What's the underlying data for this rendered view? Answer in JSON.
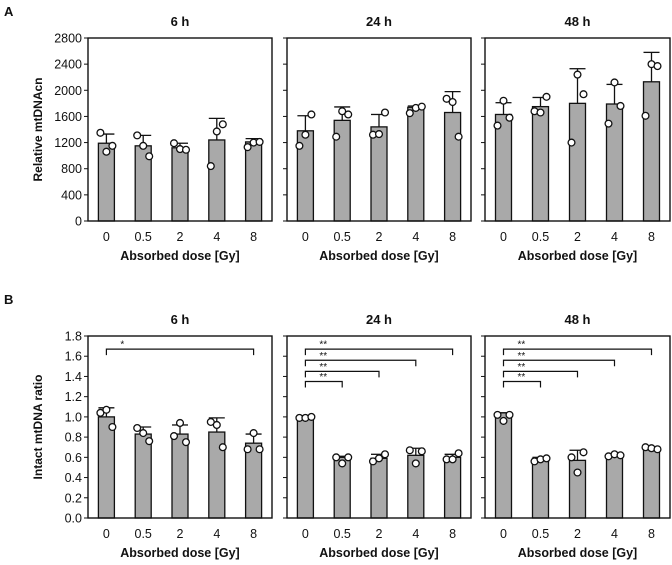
{
  "figure": {
    "panel_labels": [
      "A",
      "B"
    ]
  },
  "colors": {
    "bar_fill": "#a9a9a9",
    "bar_stroke": "#111111",
    "point_fill": "#ffffff"
  },
  "chart_data": [
    {
      "type": "bar",
      "row": "A",
      "title": "6 h",
      "xlabel": "Absorbed dose [Gy]",
      "ylabel": "Relative mtDNAcn",
      "ylim": [
        0,
        2800
      ],
      "yticks": [
        0,
        400,
        800,
        1200,
        1600,
        2000,
        2400,
        2800
      ],
      "categories": [
        "0",
        "0.5",
        "2",
        "4",
        "8"
      ],
      "values": [
        1190,
        1150,
        1120,
        1240,
        1210
      ],
      "error_upper": [
        1330,
        1310,
        1190,
        1570,
        1260
      ],
      "points": [
        [
          1350,
          1060,
          1150
        ],
        [
          1310,
          1150,
          990
        ],
        [
          1190,
          1100,
          1090
        ],
        [
          840,
          1370,
          1480
        ],
        [
          1130,
          1200,
          1210
        ]
      ],
      "annotations": []
    },
    {
      "type": "bar",
      "row": "A",
      "title": "24 h",
      "xlabel": "Absorbed dose [Gy]",
      "ylabel": "",
      "ylim": [
        0,
        2800
      ],
      "yticks": [
        0,
        400,
        800,
        1200,
        1600,
        2000,
        2400,
        2800
      ],
      "categories": [
        "0",
        "0.5",
        "2",
        "4",
        "8"
      ],
      "values": [
        1380,
        1540,
        1440,
        1740,
        1660
      ],
      "error_upper": [
        1610,
        1745,
        1630,
        1760,
        1980
      ],
      "points": [
        [
          1150,
          1320,
          1630
        ],
        [
          1290,
          1680,
          1630
        ],
        [
          1320,
          1330,
          1660
        ],
        [
          1650,
          1730,
          1750
        ],
        [
          1870,
          1820,
          1290
        ]
      ],
      "annotations": []
    },
    {
      "type": "bar",
      "row": "A",
      "title": "48 h",
      "xlabel": "Absorbed dose [Gy]",
      "ylabel": "",
      "ylim": [
        0,
        2800
      ],
      "yticks": [
        0,
        400,
        800,
        1200,
        1600,
        2000,
        2400,
        2800
      ],
      "categories": [
        "0",
        "0.5",
        "2",
        "4",
        "8"
      ],
      "values": [
        1630,
        1750,
        1800,
        1790,
        2130
      ],
      "error_upper": [
        1810,
        1890,
        2330,
        2090,
        2580
      ],
      "points": [
        [
          1460,
          1840,
          1580
        ],
        [
          1680,
          1660,
          1900
        ],
        [
          1200,
          2240,
          1940
        ],
        [
          1490,
          2120,
          1760
        ],
        [
          1610,
          2400,
          2370
        ]
      ],
      "annotations": []
    },
    {
      "type": "bar",
      "row": "B",
      "title": "6 h",
      "xlabel": "Absorbed dose [Gy]",
      "ylabel": "Intact mtDNA ratio",
      "ylim": [
        0,
        1.8
      ],
      "yticks": [
        0.0,
        0.2,
        0.4,
        0.6,
        0.8,
        1.0,
        1.2,
        1.4,
        1.6,
        1.8
      ],
      "categories": [
        "0",
        "0.5",
        "2",
        "4",
        "8"
      ],
      "values": [
        1.0,
        0.83,
        0.83,
        0.85,
        0.74
      ],
      "error_upper": [
        1.09,
        0.9,
        0.92,
        0.99,
        0.83
      ],
      "points": [
        [
          1.04,
          1.07,
          0.9
        ],
        [
          0.89,
          0.84,
          0.76
        ],
        [
          0.81,
          0.94,
          0.75
        ],
        [
          0.95,
          0.92,
          0.7
        ],
        [
          0.68,
          0.84,
          0.68
        ]
      ],
      "annotations": [
        {
          "from": "0",
          "to": "8",
          "label": "*",
          "y": 1.67
        }
      ]
    },
    {
      "type": "bar",
      "row": "B",
      "title": "24 h",
      "xlabel": "Absorbed dose [Gy]",
      "ylabel": "",
      "ylim": [
        0,
        1.8
      ],
      "yticks": [
        0.0,
        0.2,
        0.4,
        0.6,
        0.8,
        1.0,
        1.2,
        1.4,
        1.6,
        1.8
      ],
      "categories": [
        "0",
        "0.5",
        "2",
        "4",
        "8"
      ],
      "values": [
        1.0,
        0.6,
        0.59,
        0.62,
        0.6
      ],
      "error_upper": [
        1.01,
        0.61,
        0.63,
        0.69,
        0.63
      ],
      "points": [
        [
          0.99,
          0.99,
          1.0
        ],
        [
          0.6,
          0.54,
          0.6
        ],
        [
          0.56,
          0.59,
          0.63
        ],
        [
          0.67,
          0.54,
          0.66
        ],
        [
          0.58,
          0.58,
          0.64
        ]
      ],
      "annotations": [
        {
          "from": "0",
          "to": "8",
          "label": "**",
          "y": 1.67
        },
        {
          "from": "0",
          "to": "4",
          "label": "**",
          "y": 1.56
        },
        {
          "from": "0",
          "to": "2",
          "label": "**",
          "y": 1.45
        },
        {
          "from": "0",
          "to": "0.5",
          "label": "**",
          "y": 1.35
        }
      ]
    },
    {
      "type": "bar",
      "row": "B",
      "title": "48 h",
      "xlabel": "Absorbed dose [Gy]",
      "ylabel": "",
      "ylim": [
        0,
        1.8
      ],
      "yticks": [
        0.0,
        0.2,
        0.4,
        0.6,
        0.8,
        1.0,
        1.2,
        1.4,
        1.6,
        1.8
      ],
      "categories": [
        "0",
        "0.5",
        "2",
        "4",
        "8"
      ],
      "values": [
        1.04,
        0.59,
        0.57,
        0.62,
        0.69
      ],
      "error_upper": [
        1.04,
        0.6,
        0.67,
        0.63,
        0.7
      ],
      "points": [
        [
          1.02,
          0.96,
          1.02
        ],
        [
          0.56,
          0.58,
          0.59
        ],
        [
          0.6,
          0.45,
          0.65
        ],
        [
          0.61,
          0.63,
          0.62
        ],
        [
          0.7,
          0.69,
          0.68
        ]
      ],
      "annotations": [
        {
          "from": "0",
          "to": "8",
          "label": "**",
          "y": 1.67
        },
        {
          "from": "0",
          "to": "4",
          "label": "**",
          "y": 1.56
        },
        {
          "from": "0",
          "to": "2",
          "label": "**",
          "y": 1.45
        },
        {
          "from": "0",
          "to": "0.5",
          "label": "**",
          "y": 1.35
        }
      ]
    }
  ]
}
